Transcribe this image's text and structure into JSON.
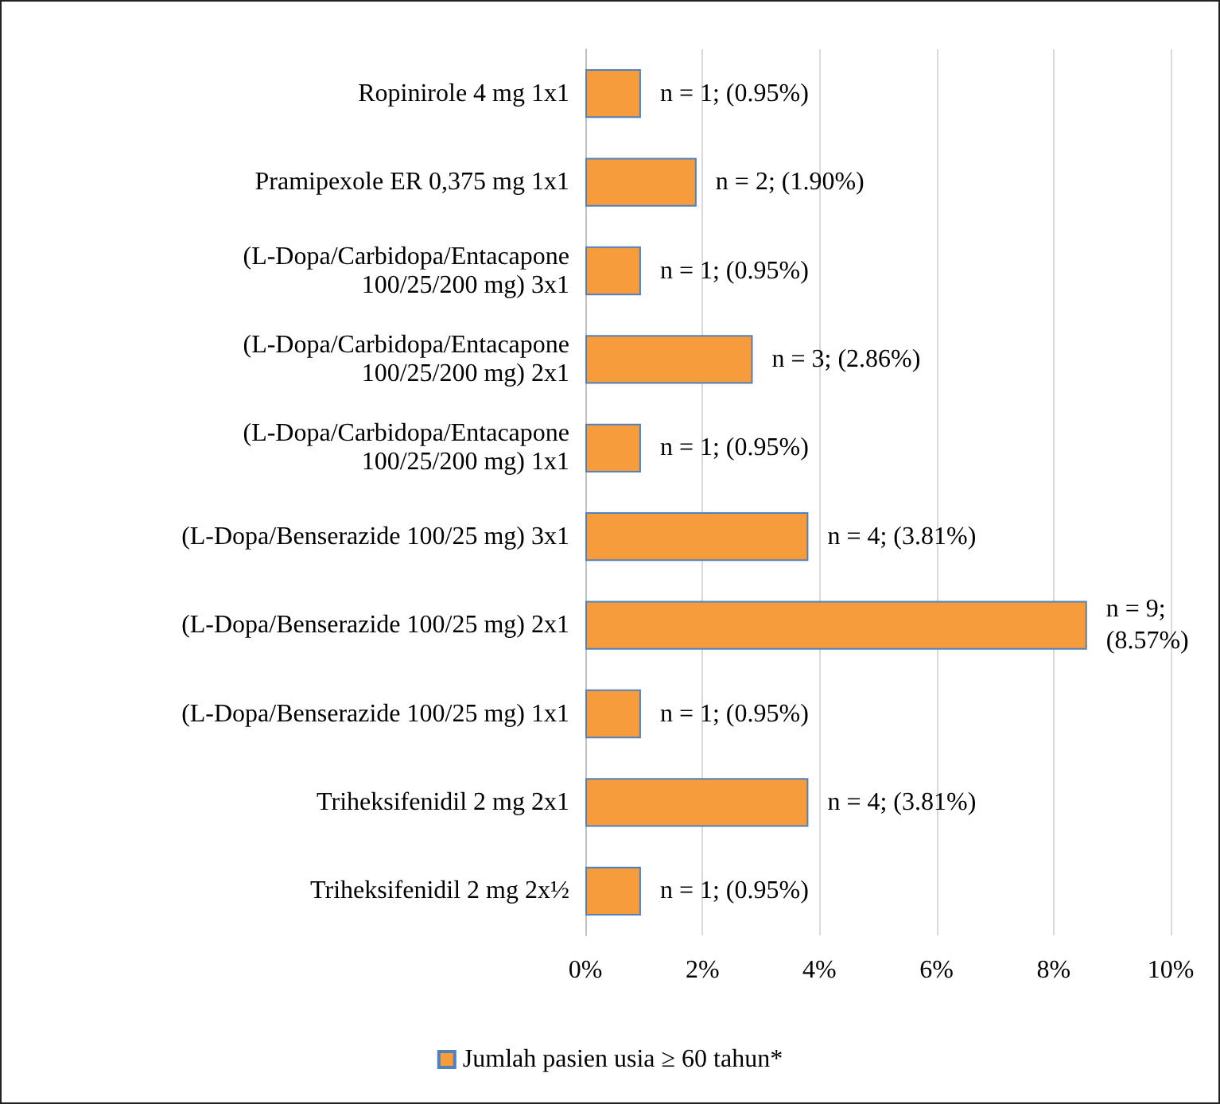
{
  "chart_data": {
    "type": "bar",
    "orientation": "horizontal",
    "categories": [
      "Ropinirole 4 mg 1x1",
      "Pramipexole ER 0,375 mg 1x1",
      "(L-Dopa/Carbidopa/Entacapone\n100/25/200 mg) 3x1",
      "(L-Dopa/Carbidopa/Entacapone\n100/25/200 mg) 2x1",
      "(L-Dopa/Carbidopa/Entacapone\n100/25/200 mg) 1x1",
      "(L-Dopa/Benserazide 100/25 mg) 3x1",
      "(L-Dopa/Benserazide 100/25 mg) 2x1",
      "(L-Dopa/Benserazide 100/25 mg) 1x1",
      "Triheksifenidil 2 mg 2x1",
      "Triheksifenidil 2 mg 2x½"
    ],
    "series": [
      {
        "name": "Jumlah pasien usia ≥ 60 tahun*",
        "color": "#f79c3c",
        "values": [
          0.95,
          1.9,
          0.95,
          2.86,
          0.95,
          3.81,
          8.57,
          0.95,
          3.81,
          0.95
        ],
        "value_labels": [
          "n = 1; (0.95%)",
          "n = 2; (1.90%)",
          "n = 1; (0.95%)",
          "n = 3; (2.86%)",
          "n = 1; (0.95%)",
          "n = 4; (3.81%)",
          "n = 9;\n(8.57%)",
          "n = 1; (0.95%)",
          "n = 4; (3.81%)",
          "n = 1; (0.95%)"
        ]
      }
    ],
    "xlim": [
      0,
      10
    ],
    "xticks": [
      {
        "value": 0,
        "label": "0%"
      },
      {
        "value": 2,
        "label": "2%"
      },
      {
        "value": 4,
        "label": "4%"
      },
      {
        "value": 6,
        "label": "6%"
      },
      {
        "value": 8,
        "label": "8%"
      },
      {
        "value": 10,
        "label": "10%"
      }
    ],
    "grid": "x",
    "legend": "bottom"
  }
}
